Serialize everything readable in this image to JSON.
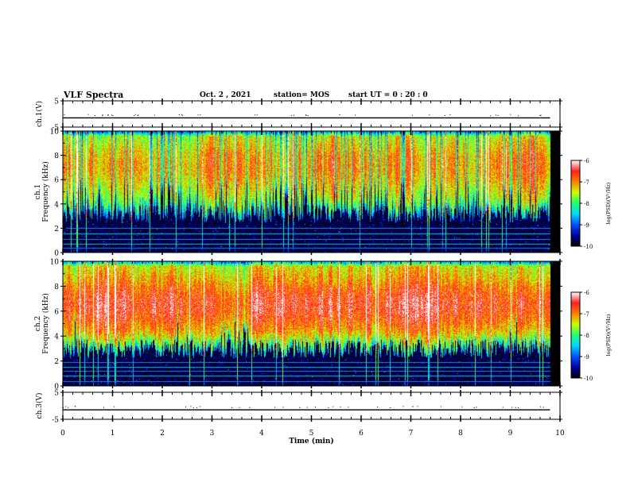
{
  "header": {
    "title": "VLF Spectra",
    "date": "Oct. 2 , 2021",
    "station": "station= MOS",
    "start": "start UT = 0 : 20 : 0"
  },
  "colorbar": {
    "label": "log(PSD)(V²/Hz)",
    "ticks": [
      "-6",
      "-7",
      "-8",
      "-9",
      "-10"
    ]
  },
  "chart_data": [
    {
      "type": "line",
      "ylabel": "ch.1(V)",
      "ylim": [
        -5,
        5
      ],
      "yticks": [
        "5",
        "-5"
      ],
      "xlim": [
        0,
        10
      ],
      "series": [
        {
          "x": [
            0,
            9.8
          ],
          "values": [
            -1.5,
            -1.5
          ]
        }
      ]
    },
    {
      "type": "heatmap",
      "ylabel": "ch.1 Frequency (kHz)",
      "ylim": [
        0,
        10
      ],
      "yticks": [
        "10",
        "8",
        "6",
        "4",
        "2",
        "0"
      ],
      "xlim": [
        0,
        10
      ],
      "data_end_min": 9.8,
      "color_scale": {
        "min": -10,
        "max": -6,
        "colors": [
          "#000000",
          "#0000a0",
          "#0050ff",
          "#00d8ff",
          "#20ff70",
          "#c8ff00",
          "#ff8000",
          "#ff2020",
          "#ffffff"
        ]
      },
      "horizontal_lines_khz": [
        0.4,
        0.7,
        1.1,
        1.6,
        2.0
      ],
      "profile": {
        "background": -9.8,
        "band_low_khz": 3.2,
        "band_level": -7.8,
        "band_peak_khz": 7.2,
        "peak_level": -7.0,
        "bursty": true
      }
    },
    {
      "type": "heatmap",
      "ylabel": "ch.2 Frequency (kHz)",
      "ylim": [
        0,
        10
      ],
      "yticks": [
        "10",
        "8",
        "6",
        "4",
        "2",
        "0"
      ],
      "xlim": [
        0,
        10
      ],
      "data_end_min": 9.8,
      "color_scale": {
        "min": -10,
        "max": -6,
        "colors": [
          "#000000",
          "#0000a0",
          "#0050ff",
          "#00d8ff",
          "#20ff70",
          "#c8ff00",
          "#ff8000",
          "#ff2020",
          "#ffffff"
        ]
      },
      "horizontal_lines_khz": [
        0.4,
        0.8,
        1.2,
        1.5,
        1.9
      ],
      "profile": {
        "background": -9.8,
        "band_low_khz": 3.0,
        "band_level": -7.6,
        "band_peak_khz": 6.5,
        "peak_level": -6.6,
        "bursty": false
      }
    },
    {
      "type": "line",
      "ylabel": "ch.3(V)",
      "ylim": [
        -5,
        5
      ],
      "yticks": [
        "5",
        "-5"
      ],
      "xlim": [
        0,
        10
      ],
      "xlabel": "Time (min)",
      "xticks": [
        "0",
        "1",
        "2",
        "3",
        "4",
        "5",
        "6",
        "7",
        "8",
        "9",
        "10"
      ],
      "series": [
        {
          "x": [
            0,
            9.8
          ],
          "values": [
            -1.5,
            -1.5
          ]
        }
      ]
    }
  ]
}
